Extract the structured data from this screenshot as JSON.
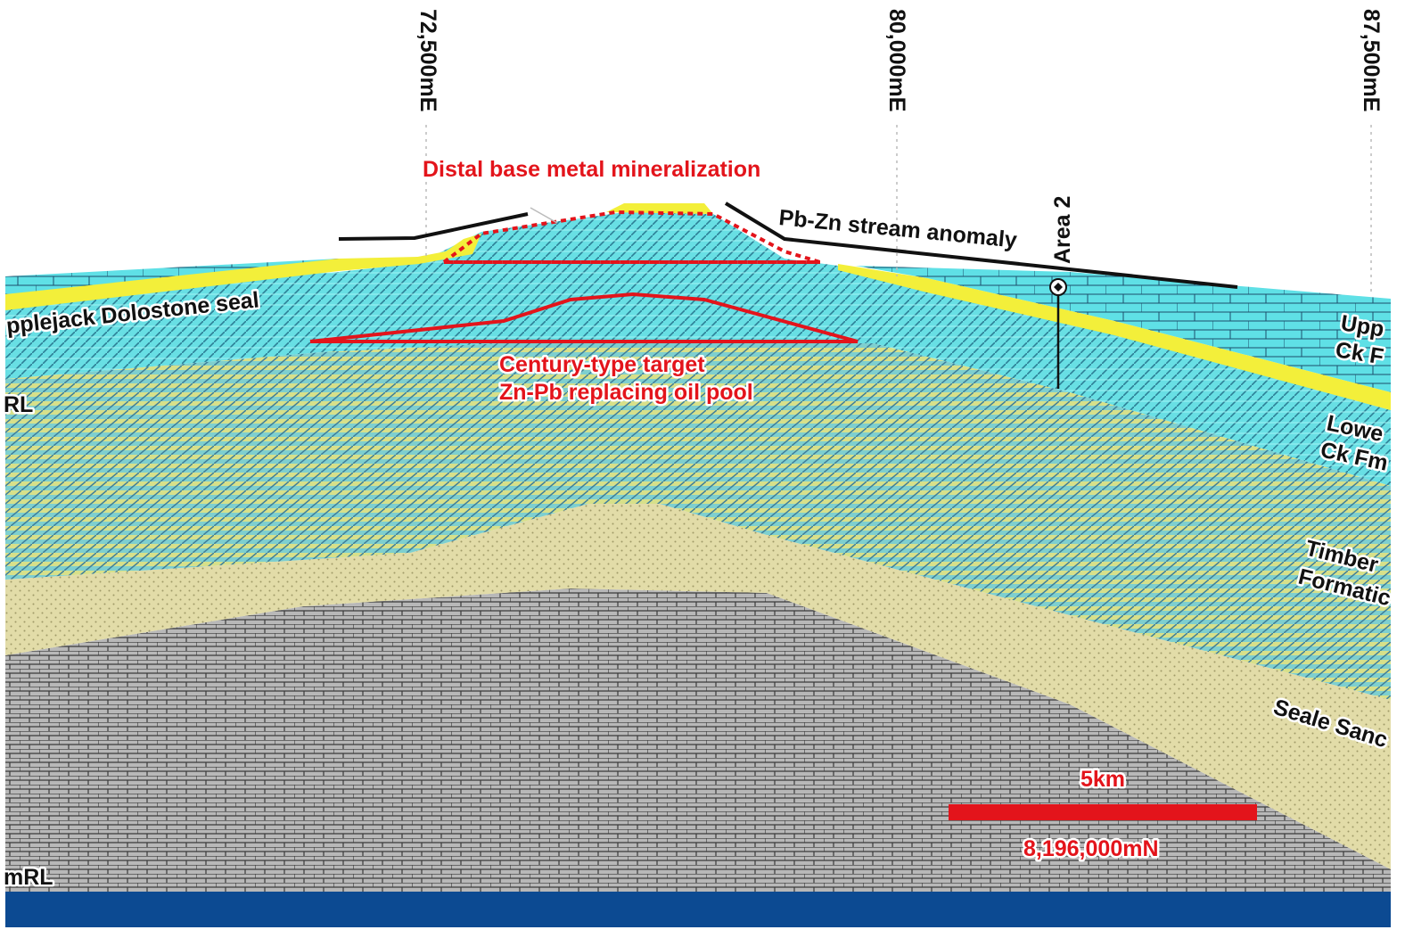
{
  "grid_eastings": [
    "72,500mE",
    "80,000mE",
    "87,500mE"
  ],
  "left_labels": {
    "upper_rl": "RL",
    "lower_rl": "mRL"
  },
  "annotations": {
    "distal": "Distal base metal mineralization",
    "stream": "Pb-Zn stream anomaly",
    "area": "Area 2",
    "target_line1": "Century-type target",
    "target_line2": "Zn-Pb replacing oil pool"
  },
  "units": {
    "seal": "pplejack Dolostone seal",
    "upper_ck_1": "Upp",
    "upper_ck_2": "Ck F",
    "lower_ck_1": "Lowe",
    "lower_ck_2": "Ck Fm",
    "timber_1": "Timber",
    "timber_2": "Formatic",
    "seale": "Seale Sanc"
  },
  "scale_bar": {
    "length_label": "5km",
    "northing": "8,196,000mN"
  },
  "colors": {
    "dolostone": "#5fe0e6",
    "seal_yellow": "#f3ef3a",
    "timber_tan": "#e2dca8",
    "basement_grey": "#a8a8a8",
    "base_navy": "#0c4a92",
    "annotation_red": "#e3141b"
  }
}
